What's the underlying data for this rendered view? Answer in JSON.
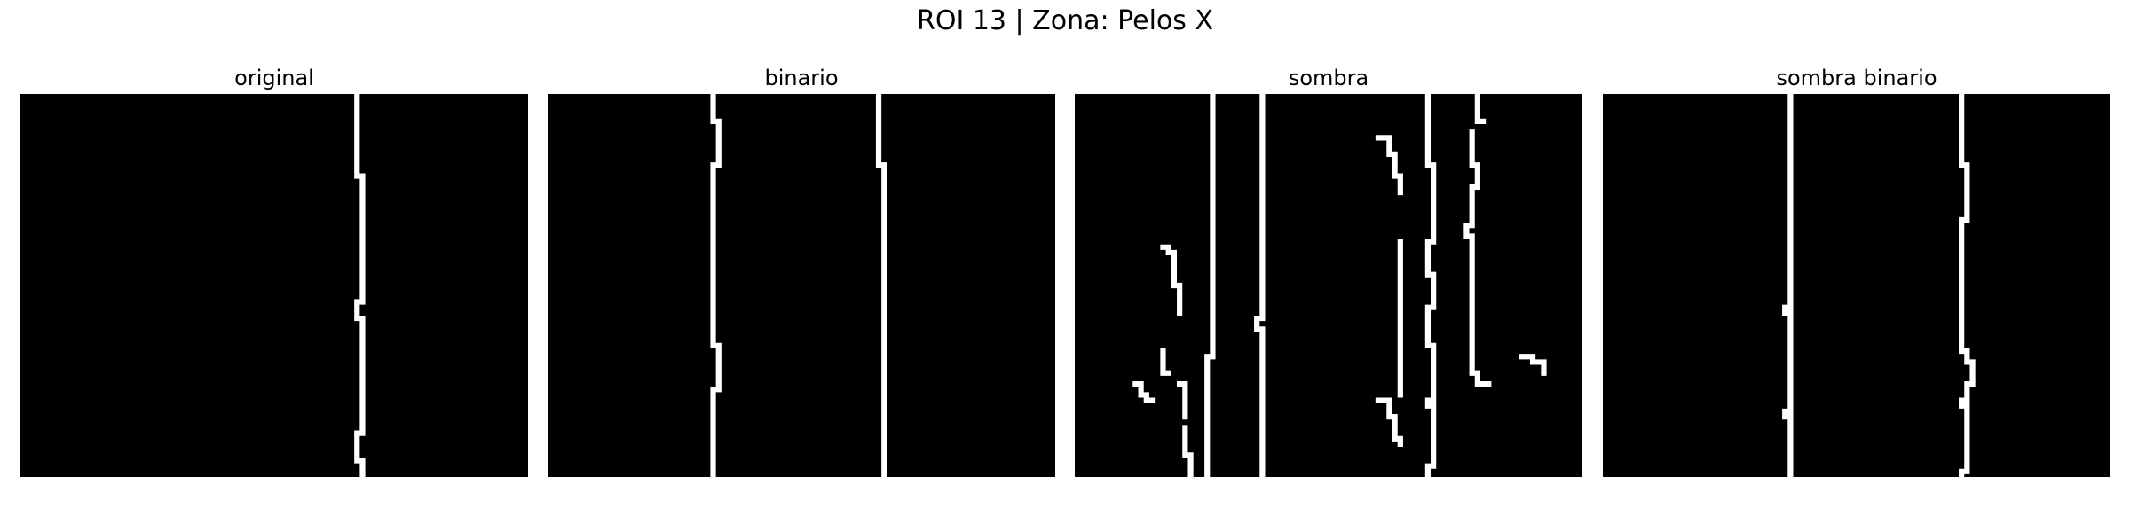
{
  "figure": {
    "title": "ROI 13 | Zona:  Pelos X"
  },
  "panels": [
    {
      "title": "original",
      "strokes": [
        [
          [
            61,
            0
          ],
          [
            61,
            15
          ],
          [
            62,
            15
          ],
          [
            62,
            38
          ],
          [
            61,
            38
          ],
          [
            61,
            41
          ],
          [
            62,
            41
          ],
          [
            62,
            62
          ],
          [
            61,
            62
          ],
          [
            61,
            67
          ],
          [
            62,
            67
          ],
          [
            62,
            70
          ]
        ]
      ]
    },
    {
      "title": "binario",
      "strokes": [
        [
          [
            30,
            0
          ],
          [
            30,
            5
          ],
          [
            31,
            5
          ],
          [
            31,
            13
          ],
          [
            30,
            13
          ],
          [
            30,
            46
          ],
          [
            31,
            46
          ],
          [
            31,
            54
          ],
          [
            30,
            54
          ],
          [
            30,
            70
          ]
        ],
        [
          [
            60,
            0
          ],
          [
            60,
            13
          ],
          [
            61,
            13
          ],
          [
            61,
            70
          ]
        ]
      ]
    },
    {
      "title": "sombra",
      "strokes": [
        [
          [
            25,
            0
          ],
          [
            25,
            48
          ],
          [
            24,
            48
          ],
          [
            24,
            70
          ]
        ],
        [
          [
            34,
            0
          ],
          [
            34,
            41
          ],
          [
            33,
            41
          ],
          [
            33,
            43
          ],
          [
            34,
            43
          ],
          [
            34,
            70
          ]
        ],
        [
          [
            64,
            0
          ],
          [
            64,
            13
          ],
          [
            65,
            13
          ],
          [
            65,
            27
          ],
          [
            64,
            27
          ],
          [
            64,
            33
          ],
          [
            65,
            33
          ],
          [
            65,
            39
          ],
          [
            64,
            39
          ],
          [
            64,
            46
          ],
          [
            65,
            46
          ],
          [
            65,
            56
          ],
          [
            64,
            56
          ],
          [
            64,
            57
          ],
          [
            65,
            57
          ],
          [
            65,
            68
          ],
          [
            64,
            68
          ],
          [
            64,
            70
          ]
        ],
        [
          [
            73,
            0
          ],
          [
            73,
            5
          ],
          [
            74,
            5
          ]
        ],
        [
          [
            72,
            7
          ],
          [
            72,
            13
          ],
          [
            73,
            13
          ],
          [
            73,
            17
          ],
          [
            72,
            17
          ],
          [
            72,
            24
          ],
          [
            71,
            24
          ],
          [
            71,
            26
          ],
          [
            72,
            26
          ],
          [
            72,
            51
          ],
          [
            73,
            51
          ],
          [
            73,
            53
          ],
          [
            75,
            53
          ]
        ],
        [
          [
            59,
            27
          ],
          [
            59,
            55
          ]
        ],
        [
          [
            55,
            8
          ],
          [
            57,
            8
          ],
          [
            57,
            11
          ],
          [
            58,
            11
          ],
          [
            58,
            15
          ],
          [
            59,
            15
          ],
          [
            59,
            18
          ]
        ],
        [
          [
            16,
            28
          ],
          [
            17,
            28
          ],
          [
            17,
            29
          ],
          [
            18,
            29
          ],
          [
            18,
            35
          ],
          [
            19,
            35
          ]
        ],
        [
          [
            19,
            36
          ],
          [
            19,
            40
          ]
        ],
        [
          [
            16,
            47
          ],
          [
            16,
            51
          ],
          [
            17,
            51
          ]
        ],
        [
          [
            11,
            53
          ],
          [
            12,
            53
          ],
          [
            12,
            55
          ],
          [
            13,
            55
          ],
          [
            13,
            56
          ],
          [
            14,
            56
          ]
        ],
        [
          [
            19,
            53
          ],
          [
            20,
            53
          ],
          [
            20,
            59
          ]
        ],
        [
          [
            20,
            61
          ],
          [
            20,
            66
          ],
          [
            21,
            66
          ],
          [
            21,
            70
          ]
        ],
        [
          [
            55,
            56
          ],
          [
            57,
            56
          ],
          [
            57,
            59
          ],
          [
            58,
            59
          ],
          [
            58,
            63
          ],
          [
            59,
            63
          ],
          [
            59,
            64
          ]
        ],
        [
          [
            81,
            48
          ],
          [
            83,
            48
          ],
          [
            83,
            49
          ],
          [
            85,
            49
          ],
          [
            85,
            51
          ]
        ]
      ]
    },
    {
      "title": "sombra binario",
      "strokes": [
        [
          [
            34,
            0
          ],
          [
            34,
            39
          ],
          [
            33,
            39
          ],
          [
            33,
            40
          ],
          [
            34,
            40
          ],
          [
            34,
            58
          ],
          [
            33,
            58
          ],
          [
            33,
            59
          ],
          [
            34,
            59
          ],
          [
            34,
            70
          ]
        ],
        [
          [
            65,
            0
          ],
          [
            65,
            13
          ],
          [
            66,
            13
          ],
          [
            66,
            23
          ],
          [
            65,
            23
          ],
          [
            65,
            47
          ],
          [
            66,
            47
          ],
          [
            66,
            49
          ],
          [
            67,
            49
          ],
          [
            67,
            53
          ],
          [
            66,
            53
          ],
          [
            66,
            56
          ],
          [
            65,
            56
          ],
          [
            65,
            57
          ],
          [
            66,
            57
          ],
          [
            66,
            69
          ],
          [
            65,
            69
          ],
          [
            65,
            70
          ]
        ]
      ]
    }
  ]
}
